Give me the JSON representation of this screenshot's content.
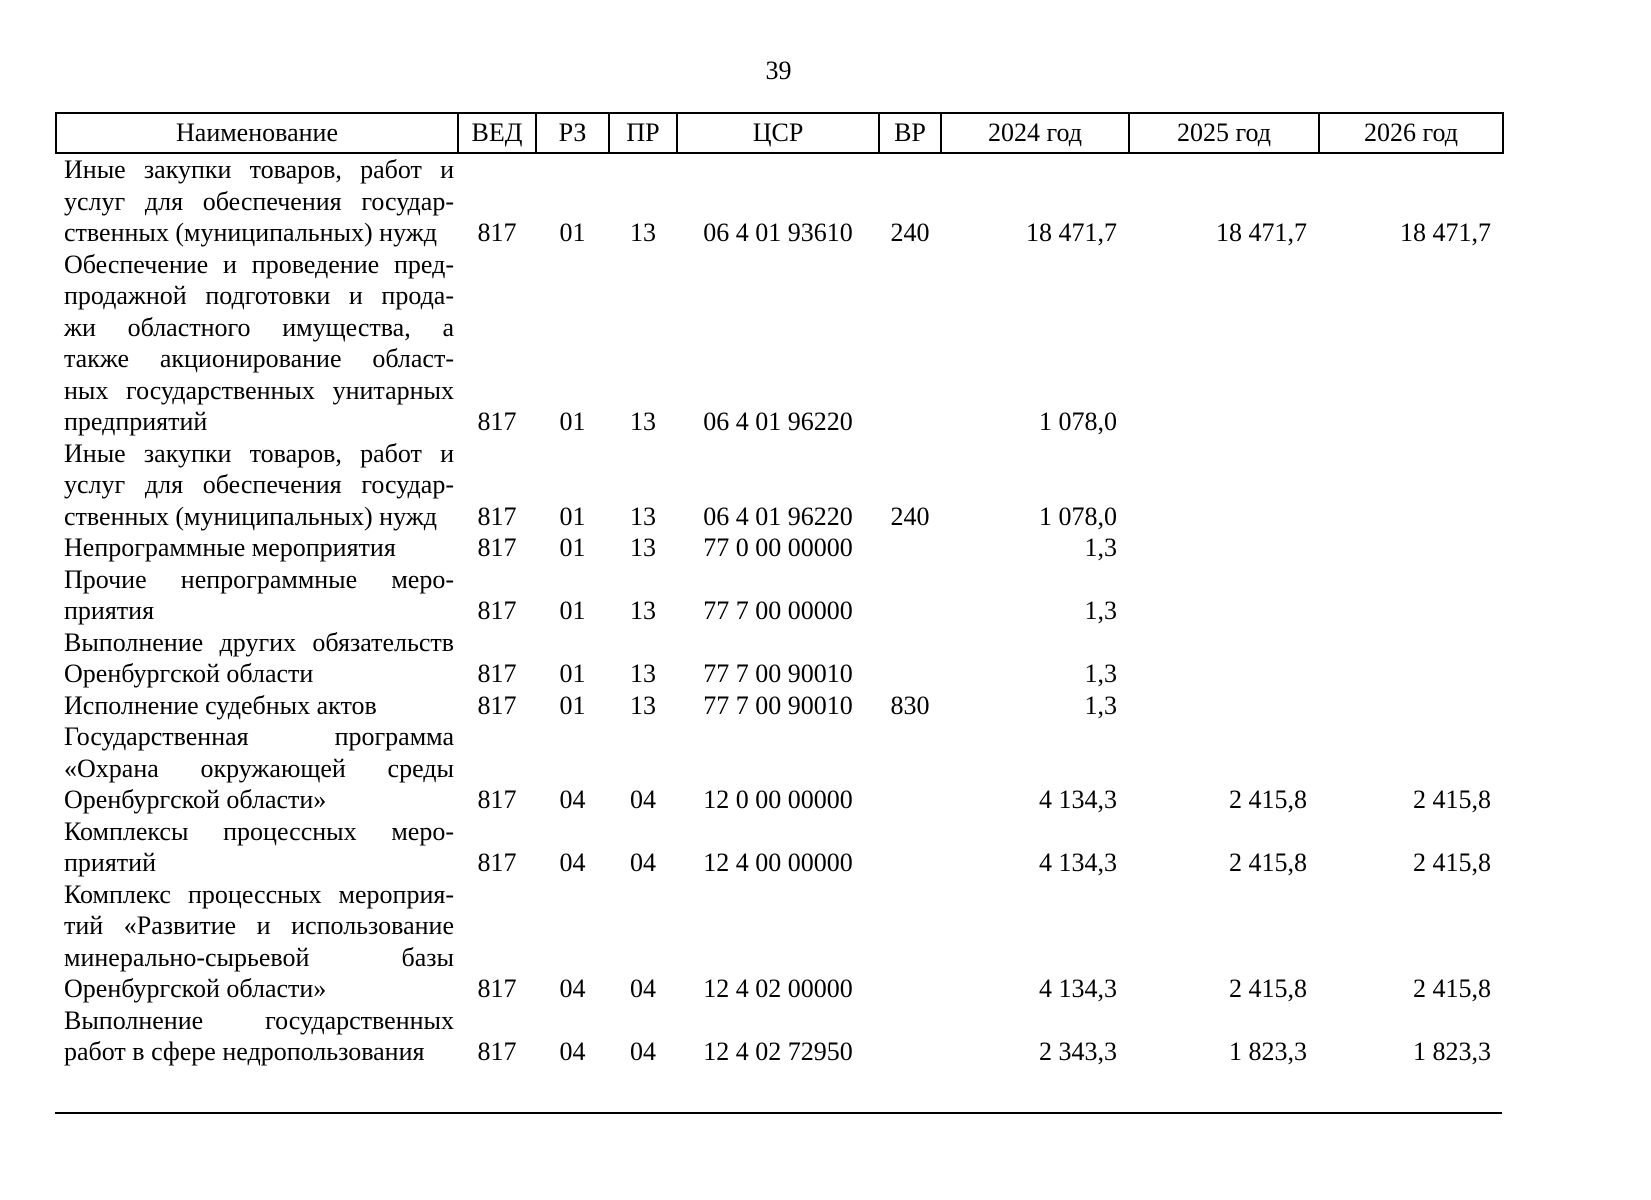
{
  "page": {
    "number": "39"
  },
  "table": {
    "headers": [
      "Наименование",
      "ВЕД",
      "РЗ",
      "ПР",
      "ЦСР",
      "ВР",
      "2024 год",
      "2025 год",
      "2026 год"
    ],
    "rows": [
      {
        "name_lines": [
          "Иные закупки товаров, работ и",
          "услуг для обеспечения государ-",
          "ственных (муниципальных) нужд"
        ],
        "ved": "817",
        "rz": "01",
        "pr": "13",
        "csr": "06 4 01 93610",
        "vr": "240",
        "y2024": "18 471,7",
        "y2025": "18 471,7",
        "y2026": "18 471,7"
      },
      {
        "name_lines": [
          "Обеспечение и проведение пред-",
          "продажной подготовки и прода-",
          "жи областного имущества, а",
          "также акционирование област-",
          "ных государственных унитарных",
          "предприятий"
        ],
        "ved": "817",
        "rz": "01",
        "pr": "13",
        "csr": "06 4 01 96220",
        "vr": "",
        "y2024": "1 078,0",
        "y2025": "",
        "y2026": ""
      },
      {
        "name_lines": [
          "Иные закупки товаров, работ и",
          "услуг для обеспечения государ-",
          "ственных (муниципальных) нужд"
        ],
        "ved": "817",
        "rz": "01",
        "pr": "13",
        "csr": "06 4 01 96220",
        "vr": "240",
        "y2024": "1 078,0",
        "y2025": "",
        "y2026": ""
      },
      {
        "name_lines": [
          "Непрограммные мероприятия"
        ],
        "ved": "817",
        "rz": "01",
        "pr": "13",
        "csr": "77 0 00 00000",
        "vr": "",
        "y2024": "1,3",
        "y2025": "",
        "y2026": ""
      },
      {
        "name_lines": [
          "Прочие непрограммные меро-",
          "приятия"
        ],
        "ved": "817",
        "rz": "01",
        "pr": "13",
        "csr": "77 7 00 00000",
        "vr": "",
        "y2024": "1,3",
        "y2025": "",
        "y2026": ""
      },
      {
        "name_lines": [
          "Выполнение других обязательств",
          "Оренбургской области"
        ],
        "ved": "817",
        "rz": "01",
        "pr": "13",
        "csr": "77 7 00 90010",
        "vr": "",
        "y2024": "1,3",
        "y2025": "",
        "y2026": ""
      },
      {
        "name_lines": [
          "Исполнение судебных актов"
        ],
        "ved": "817",
        "rz": "01",
        "pr": "13",
        "csr": "77 7 00 90010",
        "vr": "830",
        "y2024": "1,3",
        "y2025": "",
        "y2026": ""
      },
      {
        "name_lines": [
          "Государственная программа",
          "«Охрана окружающей среды",
          "Оренбургской области»"
        ],
        "ved": "817",
        "rz": "04",
        "pr": "04",
        "csr": "12 0 00 00000",
        "vr": "",
        "y2024": "4 134,3",
        "y2025": "2 415,8",
        "y2026": "2 415,8"
      },
      {
        "name_lines": [
          "Комплексы процессных меро-",
          "приятий"
        ],
        "ved": "817",
        "rz": "04",
        "pr": "04",
        "csr": "12 4 00 00000",
        "vr": "",
        "y2024": "4 134,3",
        "y2025": "2 415,8",
        "y2026": "2 415,8"
      },
      {
        "name_lines": [
          "Комплекс процессных мероприя-",
          "тий «Развитие и использование",
          "минерально-сырьевой базы",
          "Оренбургской области»"
        ],
        "ved": "817",
        "rz": "04",
        "pr": "04",
        "csr": "12 4 02 00000",
        "vr": "",
        "y2024": "4 134,3",
        "y2025": "2 415,8",
        "y2026": "2 415,8"
      },
      {
        "name_lines": [
          "Выполнение государственных",
          "работ в сфере недропользования"
        ],
        "ved": "817",
        "rz": "04",
        "pr": "04",
        "csr": "12 4 02 72950",
        "vr": "",
        "y2024": "2 343,3",
        "y2025": "1 823,3",
        "y2026": "1 823,3"
      }
    ]
  }
}
